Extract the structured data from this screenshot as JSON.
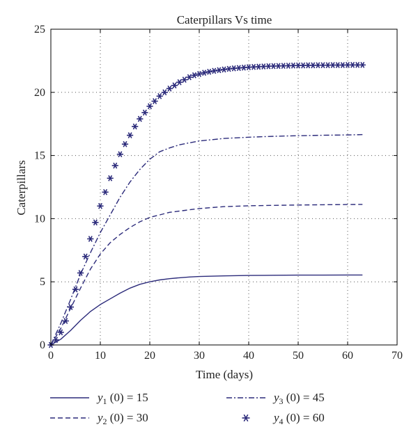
{
  "chart_data": {
    "type": "line",
    "title": "Caterpillars Vs time",
    "xlabel": "Time (days)",
    "ylabel": "Caterpillars",
    "xlim": [
      0,
      70
    ],
    "ylim": [
      0,
      25
    ],
    "xticks": [
      0,
      10,
      20,
      30,
      40,
      50,
      60,
      70
    ],
    "yticks": [
      0,
      5,
      10,
      15,
      20,
      25
    ],
    "grid": true,
    "legend_position": "bottom",
    "line_color": "#2b2a7a",
    "series": [
      {
        "label_var": "y",
        "label_sub": "1",
        "label_rest": "(0) = 15",
        "style": "solid",
        "x": [
          0,
          2,
          4,
          6,
          8,
          10,
          12,
          14,
          16,
          18,
          20,
          22,
          24,
          26,
          28,
          30,
          35,
          40,
          45,
          50,
          55,
          60,
          63
        ],
        "values": [
          0,
          0.45,
          1.15,
          1.95,
          2.65,
          3.2,
          3.65,
          4.1,
          4.5,
          4.8,
          5.0,
          5.15,
          5.25,
          5.32,
          5.38,
          5.42,
          5.47,
          5.5,
          5.52,
          5.53,
          5.53,
          5.54,
          5.54
        ]
      },
      {
        "label_var": "y",
        "label_sub": "2",
        "label_rest": "(0) = 30",
        "style": "dashed",
        "x": [
          0,
          2,
          4,
          6,
          8,
          10,
          12,
          14,
          16,
          18,
          20,
          22,
          24,
          26,
          28,
          30,
          35,
          40,
          45,
          50,
          55,
          60,
          63
        ],
        "values": [
          0,
          1.3,
          2.9,
          4.5,
          6.0,
          7.2,
          8.1,
          8.75,
          9.3,
          9.75,
          10.1,
          10.3,
          10.5,
          10.6,
          10.7,
          10.8,
          10.95,
          11.02,
          11.05,
          11.08,
          11.1,
          11.12,
          11.13
        ]
      },
      {
        "label_var": "y",
        "label_sub": "3",
        "label_rest": "(0) = 45",
        "style": "dashdot",
        "x": [
          0,
          2,
          4,
          6,
          8,
          10,
          12,
          14,
          16,
          18,
          20,
          22,
          24,
          26,
          28,
          30,
          35,
          40,
          45,
          50,
          55,
          60,
          63
        ],
        "values": [
          0,
          1.7,
          3.6,
          5.6,
          7.3,
          8.9,
          10.3,
          11.7,
          12.9,
          13.9,
          14.7,
          15.3,
          15.6,
          15.85,
          16.0,
          16.15,
          16.35,
          16.45,
          16.52,
          16.57,
          16.6,
          16.63,
          16.65
        ]
      },
      {
        "label_var": "y",
        "label_sub": "4",
        "label_rest": "(0) = 60",
        "style": "markers",
        "x": [
          0,
          1,
          2,
          3,
          4,
          5,
          6,
          7,
          8,
          9,
          10,
          11,
          12,
          13,
          14,
          15,
          16,
          17,
          18,
          19,
          20,
          21,
          22,
          23,
          24,
          25,
          26,
          27,
          28,
          29,
          30,
          31,
          32,
          33,
          34,
          35,
          36,
          37,
          38,
          39,
          40,
          41,
          42,
          43,
          44,
          45,
          46,
          47,
          48,
          49,
          50,
          51,
          52,
          53,
          54,
          55,
          56,
          57,
          58,
          59,
          60,
          61,
          62,
          63
        ],
        "values": [
          0,
          0.4,
          1.0,
          1.9,
          3.0,
          4.4,
          5.7,
          7.0,
          8.4,
          9.7,
          11.0,
          12.1,
          13.2,
          14.2,
          15.1,
          15.9,
          16.6,
          17.3,
          17.9,
          18.4,
          18.9,
          19.3,
          19.7,
          20.0,
          20.3,
          20.55,
          20.8,
          21.0,
          21.2,
          21.35,
          21.45,
          21.55,
          21.63,
          21.7,
          21.76,
          21.81,
          21.86,
          21.9,
          21.93,
          21.96,
          21.99,
          22.01,
          22.03,
          22.05,
          22.07,
          22.08,
          22.09,
          22.1,
          22.11,
          22.12,
          22.13,
          22.13,
          22.14,
          22.14,
          22.15,
          22.15,
          22.15,
          22.16,
          22.16,
          22.16,
          22.17,
          22.17,
          22.17,
          22.17
        ]
      }
    ]
  }
}
